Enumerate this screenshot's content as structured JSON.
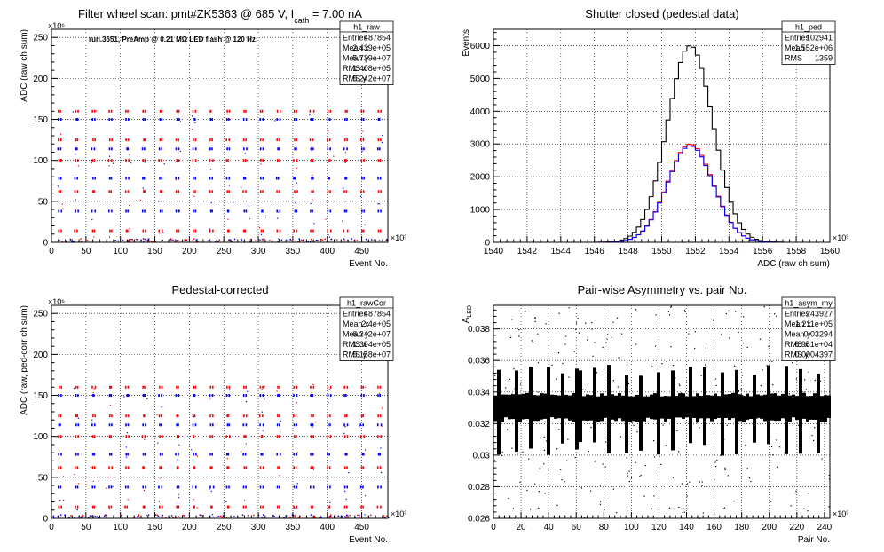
{
  "colors": {
    "red": "#ff0000",
    "blue": "#0000ff",
    "black": "#000000",
    "grid": "#000000"
  },
  "chart_data": [
    {
      "type": "scatter",
      "title": "Filter wheel scan: pmt#ZK5363 @   685 V, I",
      "title_sub": "cath",
      "title_tail": " = 7.00 nA",
      "annotation": "run.3651, PreAmp @ 0.21 MΩ LED flash @  120 Hz:",
      "xlabel": "Event No.",
      "ylabel": "ADC (raw ch sum)",
      "x_exponent": "×10³",
      "y_exponent": "×10⁶",
      "xlim": [
        0,
        487.854
      ],
      "ylim": [
        0,
        260
      ],
      "x_ticks": [
        0,
        50,
        100,
        150,
        200,
        250,
        300,
        350,
        400,
        450
      ],
      "y_ticks": [
        0,
        50,
        100,
        150,
        200,
        250
      ],
      "grid": true,
      "levels": [
        0,
        14,
        38,
        62,
        78,
        100,
        114,
        125,
        150,
        160
      ],
      "stats": {
        "name": "h1_raw",
        "rows": [
          [
            "Entries",
            "487854"
          ],
          [
            "Mean x",
            "2.439e+05"
          ],
          [
            "Mean y",
            "5.739e+07"
          ],
          [
            "RMS x",
            "1.408e+05"
          ],
          [
            "RMS y",
            "5.242e+07"
          ]
        ]
      }
    },
    {
      "type": "bar",
      "title": "Shutter closed (pedestal data)",
      "xlabel": "ADC (raw ch sum)",
      "ylabel": "Events",
      "x_exponent": "×10³",
      "xlim": [
        1540,
        1560
      ],
      "ylim": [
        0,
        6500
      ],
      "x_ticks": [
        1540,
        1542,
        1544,
        1546,
        1548,
        1550,
        1552,
        1554,
        1556,
        1558,
        1560
      ],
      "y_ticks": [
        0,
        1000,
        2000,
        3000,
        4000,
        5000,
        6000
      ],
      "grid": true,
      "mean": 1551.7,
      "series": [
        {
          "name": "total",
          "color": "black",
          "peak": 6000,
          "sigma": 1.36
        },
        {
          "name": "red",
          "color": "red",
          "peak": 3000,
          "sigma": 1.36
        },
        {
          "name": "blue",
          "color": "blue",
          "peak": 2950,
          "sigma": 1.36
        }
      ],
      "stats": {
        "name": "h1_ped",
        "rows": [
          [
            "Entries",
            "102941"
          ],
          [
            "Mean",
            "1.552e+06"
          ],
          [
            "RMS",
            "1359"
          ]
        ]
      }
    },
    {
      "type": "scatter",
      "title": "Pedestal-corrected",
      "xlabel": "Event No.",
      "ylabel": "ADC (raw, ped-corr ch sum)",
      "x_exponent": "×10³",
      "y_exponent": "×10⁶",
      "xlim": [
        0,
        487.854
      ],
      "ylim": [
        0,
        260
      ],
      "x_ticks": [
        0,
        50,
        100,
        150,
        200,
        250,
        300,
        350,
        400,
        450
      ],
      "y_ticks": [
        0,
        50,
        100,
        150,
        200,
        250
      ],
      "grid": true,
      "levels": [
        0,
        14,
        38,
        62,
        78,
        100,
        114,
        125,
        150,
        160
      ],
      "stats": {
        "name": "h1_rawCor",
        "rows": [
          [
            "Entries",
            "487854"
          ],
          [
            "Mean x",
            "2.4e+05"
          ],
          [
            "Mean y",
            "6.242e+07"
          ],
          [
            "RMS x",
            "1.394e+05"
          ],
          [
            "RMS y",
            "5.158e+07"
          ]
        ]
      }
    },
    {
      "type": "scatter",
      "title": "Pair-wise Asymmetry vs. pair No.",
      "xlabel": "Pair No.",
      "ylabel": "A",
      "ylabel_sub": "LED",
      "x_exponent": "×10³",
      "xlim": [
        0,
        243.927
      ],
      "ylim": [
        0.026,
        0.0395
      ],
      "x_ticks": [
        0,
        20,
        40,
        60,
        80,
        100,
        120,
        140,
        160,
        180,
        200,
        220,
        240
      ],
      "y_ticks": [
        0.026,
        0.028,
        0.03,
        0.032,
        0.034,
        0.036,
        0.038
      ],
      "y_tick_labels": [
        "0.026",
        "0.028",
        "0.03",
        "0.032",
        "0.034",
        "0.036",
        "0.038"
      ],
      "grid": true,
      "band_center": 0.0331,
      "band_width": 0.0011,
      "stats": {
        "name": "h1_asym_my",
        "rows": [
          [
            "Entries",
            "243927"
          ],
          [
            "Mean x",
            "1.211e+05"
          ],
          [
            "Mean y",
            "0.03294"
          ],
          [
            "RMS x",
            "6.951e+04"
          ],
          [
            "RMS y",
            "0.0004397"
          ]
        ]
      }
    }
  ]
}
